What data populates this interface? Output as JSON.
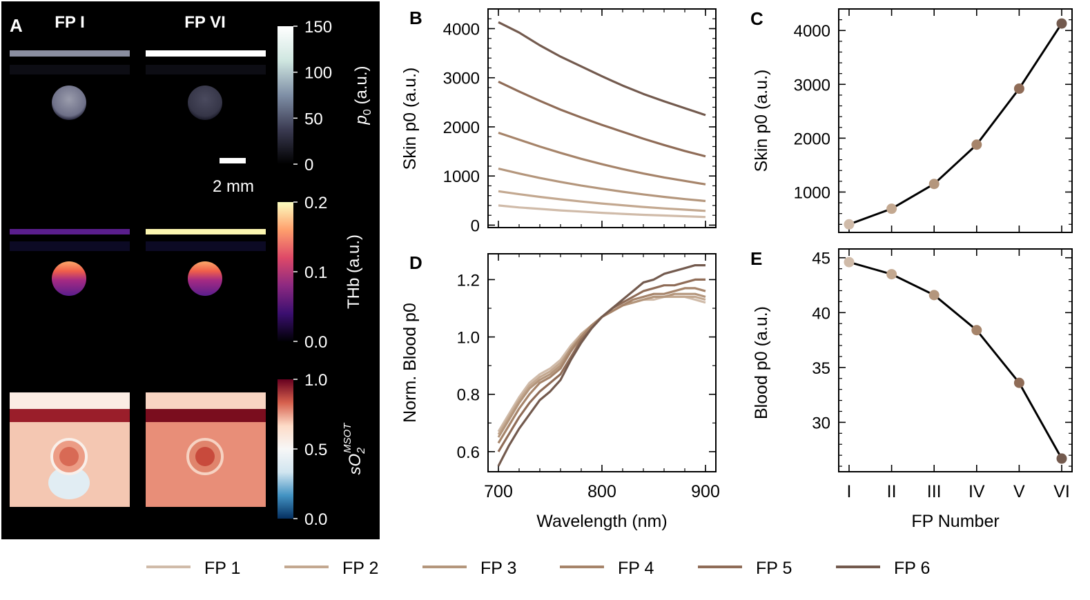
{
  "panel_a": {
    "panel_letter": "A",
    "col_titles": [
      "FP I",
      "FP VI"
    ],
    "scale_bar_label": "2 mm",
    "colorbars": [
      {
        "label_main": "p",
        "label_sub": "0",
        "label_tail": " (a.u.)",
        "ticks": [
          "150",
          "100",
          "50",
          "0"
        ],
        "stops": [
          "#ffffff",
          "#cfe6e0",
          "#7f8fa6",
          "#3b3b52",
          "#000000"
        ]
      },
      {
        "label_main": "THb (a.u.)",
        "label_sub": "",
        "label_tail": "",
        "ticks": [
          "0.2",
          "0.1",
          "0.0"
        ],
        "stops": [
          "#fcfdbf",
          "#fe9f6d",
          "#de4968",
          "#8c2981",
          "#3b0f70",
          "#000004"
        ]
      },
      {
        "label_main": "sO",
        "label_sub": "2",
        "label_sup": "MSOT",
        "ticks": [
          "1.0",
          "0.5",
          "0.0"
        ],
        "stops": [
          "#67001f",
          "#d6604d",
          "#fddbc7",
          "#f7f7f7",
          "#d1e5f0",
          "#4393c3",
          "#053061"
        ]
      }
    ],
    "images": {
      "fp1": {
        "skin_p0_color": "#8a8ea0",
        "blood_p0_color": "#9a9cac",
        "skin_thb_color": "#5a1e8c",
        "skin_so2_color": "#9a1e2a",
        "bg_so2_color": "#f4c7b2",
        "blood_so2_color": "#ec9c85"
      },
      "fp6": {
        "skin_p0_color": "#ffffff",
        "blood_p0_color": "#4a4a5e",
        "skin_thb_color": "#fcf6b0",
        "skin_so2_color": "#7a0d1e",
        "bg_so2_color": "#e88e78",
        "blood_so2_color": "#e0846c"
      }
    }
  },
  "series_colors": [
    "#d0bba9",
    "#c3a890",
    "#b4967c",
    "#a6846a",
    "#8f6c57",
    "#735a4e"
  ],
  "legend": [
    "FP 1",
    "FP 2",
    "FP 3",
    "FP 4",
    "FP 5",
    "FP 6"
  ],
  "chart_data": [
    {
      "panel": "B",
      "type": "line",
      "xlabel": "Wavelength (nm)",
      "ylabel": "Skin p0 (a.u.)",
      "xlim": [
        690,
        910
      ],
      "ylim": [
        -50,
        4400
      ],
      "xticks": [
        700,
        800,
        900
      ],
      "yticks": [
        0,
        1000,
        2000,
        3000,
        4000
      ],
      "x": [
        700,
        720,
        740,
        760,
        780,
        800,
        820,
        840,
        860,
        880,
        900
      ],
      "series": [
        {
          "name": "FP 1",
          "values": [
            400,
            360,
            330,
            300,
            275,
            250,
            230,
            210,
            195,
            180,
            165
          ]
        },
        {
          "name": "FP 2",
          "values": [
            690,
            630,
            575,
            525,
            480,
            440,
            405,
            370,
            340,
            315,
            290
          ]
        },
        {
          "name": "FP 3",
          "values": [
            1150,
            1050,
            960,
            880,
            805,
            740,
            680,
            625,
            575,
            530,
            490
          ]
        },
        {
          "name": "FP 4",
          "values": [
            1880,
            1740,
            1600,
            1470,
            1350,
            1240,
            1140,
            1050,
            970,
            900,
            830
          ]
        },
        {
          "name": "FP 5",
          "values": [
            2920,
            2720,
            2530,
            2350,
            2190,
            2040,
            1900,
            1760,
            1630,
            1510,
            1400
          ]
        },
        {
          "name": "FP 6",
          "values": [
            4130,
            3920,
            3660,
            3430,
            3230,
            3030,
            2840,
            2670,
            2520,
            2380,
            2240
          ]
        }
      ]
    },
    {
      "panel": "C",
      "type": "line",
      "xlabel": "",
      "ylabel": "Skin p0 (a.u.)",
      "ylim": [
        250,
        4400
      ],
      "categories": [
        "I",
        "II",
        "III",
        "IV",
        "V",
        "VI"
      ],
      "yticks": [
        1000,
        2000,
        3000,
        4000
      ],
      "values": [
        400,
        690,
        1150,
        1880,
        2920,
        4130
      ]
    },
    {
      "panel": "D",
      "type": "line",
      "xlabel": "Wavelength (nm)",
      "ylabel": "Norm. Blood p0",
      "xlim": [
        690,
        910
      ],
      "ylim": [
        0.53,
        1.29
      ],
      "xticks": [
        700,
        800,
        900
      ],
      "yticks": [
        0.6,
        0.8,
        1.0,
        1.2
      ],
      "x": [
        700,
        710,
        720,
        730,
        740,
        750,
        760,
        770,
        780,
        790,
        800,
        810,
        820,
        830,
        840,
        850,
        860,
        870,
        880,
        890,
        900
      ],
      "series": [
        {
          "name": "FP 1",
          "values": [
            0.67,
            0.73,
            0.79,
            0.84,
            0.87,
            0.89,
            0.92,
            0.97,
            1.01,
            1.04,
            1.07,
            1.09,
            1.11,
            1.12,
            1.13,
            1.13,
            1.14,
            1.14,
            1.14,
            1.13,
            1.12
          ]
        },
        {
          "name": "FP 2",
          "values": [
            0.66,
            0.72,
            0.78,
            0.83,
            0.86,
            0.88,
            0.91,
            0.96,
            1.01,
            1.04,
            1.07,
            1.09,
            1.11,
            1.12,
            1.13,
            1.14,
            1.14,
            1.14,
            1.14,
            1.14,
            1.13
          ]
        },
        {
          "name": "FP 3",
          "values": [
            0.65,
            0.71,
            0.77,
            0.82,
            0.85,
            0.87,
            0.9,
            0.96,
            1.0,
            1.04,
            1.07,
            1.09,
            1.11,
            1.12,
            1.13,
            1.14,
            1.14,
            1.15,
            1.15,
            1.15,
            1.14
          ]
        },
        {
          "name": "FP 4",
          "values": [
            0.63,
            0.69,
            0.75,
            0.8,
            0.84,
            0.86,
            0.89,
            0.95,
            1.0,
            1.04,
            1.07,
            1.09,
            1.11,
            1.13,
            1.14,
            1.15,
            1.15,
            1.16,
            1.17,
            1.17,
            1.16
          ]
        },
        {
          "name": "FP 5",
          "values": [
            0.6,
            0.66,
            0.72,
            0.77,
            0.81,
            0.84,
            0.87,
            0.93,
            0.99,
            1.03,
            1.07,
            1.1,
            1.12,
            1.14,
            1.16,
            1.17,
            1.18,
            1.18,
            1.19,
            1.2,
            1.2
          ]
        },
        {
          "name": "FP 6",
          "values": [
            0.55,
            0.62,
            0.68,
            0.73,
            0.78,
            0.81,
            0.85,
            0.92,
            0.98,
            1.03,
            1.07,
            1.1,
            1.13,
            1.16,
            1.19,
            1.2,
            1.22,
            1.23,
            1.24,
            1.25,
            1.25
          ]
        }
      ]
    },
    {
      "panel": "E",
      "type": "line",
      "xlabel": "FP Number",
      "ylabel": "Blood p0 (a.u.)",
      "ylim": [
        25.5,
        45.8
      ],
      "categories": [
        "I",
        "II",
        "III",
        "IV",
        "V",
        "VI"
      ],
      "yticks": [
        30,
        35,
        40,
        45
      ],
      "values": [
        44.6,
        43.5,
        41.6,
        38.4,
        33.6,
        26.7
      ]
    }
  ]
}
